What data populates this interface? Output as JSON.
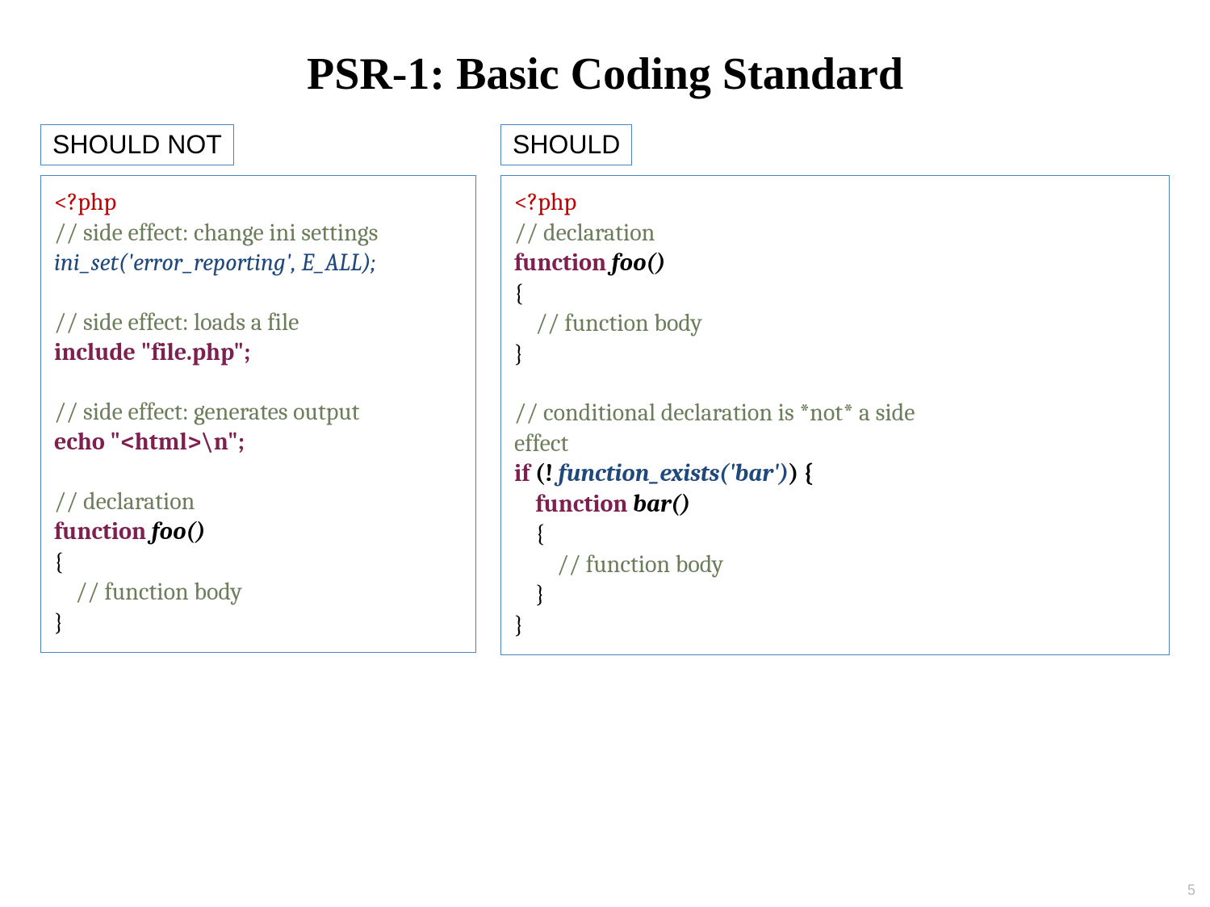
{
  "title": "PSR-1: Basic Coding Standard",
  "page_number": "5",
  "colors": {
    "border": "#4a86c6",
    "php_tag": "#c00000",
    "comment": "#6b7d5a",
    "keyword": "#7d1f4f",
    "call_italic": "#1F497D",
    "text": "#000000",
    "background": "#ffffff"
  },
  "left": {
    "tag": "SHOULD NOT",
    "php_open": "<?php",
    "c1": "// side effect: change ini settings",
    "l1": "ini_set('error_reporting', E_ALL);",
    "c2": "// side effect: loads a file",
    "kw_include": "include ",
    "str_file": "\"file.php\";",
    "c3": "// side effect: generates output",
    "kw_echo": "echo ",
    "str_html": "\"<html>\\n\";",
    "c4": "// declaration",
    "kw_function": "function ",
    "fn_foo": "foo()",
    "brace_open": "{",
    "c_body": "    // function body",
    "brace_close": "}"
  },
  "right": {
    "tag": "SHOULD",
    "php_open": "<?php",
    "c1": "// declaration",
    "kw_function": "function ",
    "fn_foo": "foo()",
    "brace_open": "{",
    "c_body": "    // function body",
    "brace_close": "}",
    "c2a": "// conditional declaration is *not* a side",
    "c2b": "effect",
    "kw_if": "if ",
    "if_open": "(! ",
    "fn_exists": "function_exists('bar')",
    "if_close": ") {",
    "fn_bar": "bar()",
    "inner_open": "    {",
    "inner_body": "        // function body",
    "inner_close": "    }",
    "outer_close": "}",
    "indent4": "    "
  }
}
